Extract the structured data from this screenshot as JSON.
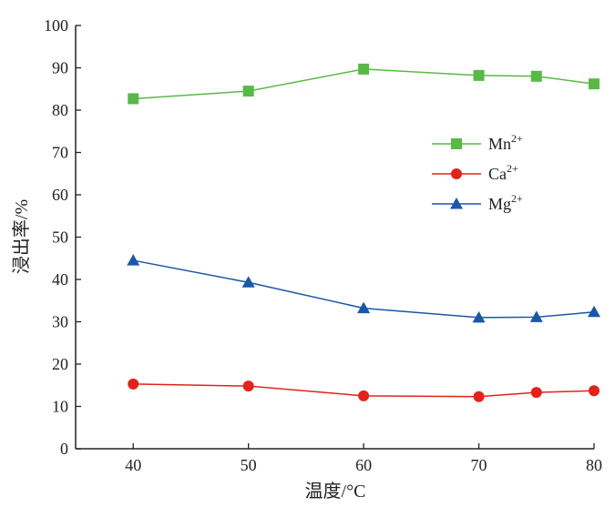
{
  "chart_data": {
    "type": "line",
    "title": "",
    "xlabel": "温度/°C",
    "ylabel": "浸出率/%",
    "x": [
      40,
      50,
      60,
      70,
      75,
      80
    ],
    "xlim": [
      35,
      80
    ],
    "ylim": [
      0,
      100
    ],
    "xticks": [
      40,
      50,
      60,
      70,
      80
    ],
    "yticks": [
      0,
      10,
      20,
      30,
      40,
      50,
      60,
      70,
      80,
      90,
      100
    ],
    "grid": false,
    "legend_position": "right",
    "series": [
      {
        "name": "Mn",
        "sup": "2+",
        "marker": "square",
        "color": "#59b947",
        "values": [
          82.7,
          84.5,
          89.7,
          88.2,
          88.0,
          86.2
        ]
      },
      {
        "name": "Ca",
        "sup": "2+",
        "marker": "circle",
        "color": "#e2231a",
        "values": [
          15.3,
          14.8,
          12.5,
          12.3,
          13.3,
          13.7
        ]
      },
      {
        "name": "Mg",
        "sup": "2+",
        "marker": "triangle",
        "color": "#1c56a7",
        "values": [
          44.5,
          39.3,
          33.2,
          31.0,
          31.1,
          32.3
        ]
      }
    ]
  }
}
